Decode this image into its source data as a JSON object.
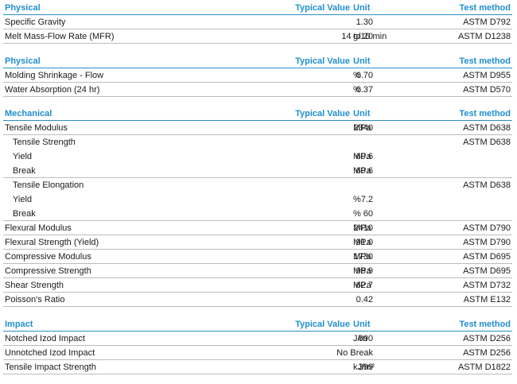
{
  "headers": {
    "typical_value": "Typical Value",
    "unit": "Unit",
    "test_method": "Test method"
  },
  "sections": [
    {
      "title": "Physical",
      "rows": [
        {
          "name": "Specific Gravity",
          "value": "1.30",
          "unit": "",
          "test": "ASTM D792"
        },
        {
          "name": "Melt Mass-Flow Rate (MFR)",
          "value": "14 to 20",
          "unit": "g/10 min",
          "test": "ASTM D1238"
        }
      ]
    },
    {
      "title": "Physical",
      "rows": [
        {
          "name": "Molding Shrinkage - Flow",
          "value": "0.70",
          "unit": "%",
          "test": "ASTM D955"
        },
        {
          "name": "Water Absorption (24 hr)",
          "value": "0.37",
          "unit": "%",
          "test": "ASTM D570"
        }
      ]
    },
    {
      "title": "Mechanical",
      "rows": [
        {
          "name": "Tensile Modulus",
          "value": "2340",
          "unit": "MPa",
          "test": "ASTM D638"
        },
        {
          "name": "Tensile Strength",
          "value": "",
          "unit": "",
          "test": "ASTM D638",
          "group": true
        },
        {
          "name": "Yield",
          "value": "69.6",
          "unit": "MPa",
          "test": "",
          "sub": true
        },
        {
          "name": "Break",
          "value": "69.6",
          "unit": "MPa",
          "test": ""
        },
        {
          "name": "Tensile Elongation",
          "value": "",
          "unit": "",
          "test": "ASTM D638",
          "group": true
        },
        {
          "name": "Yield",
          "value": "7.2",
          "unit": "%",
          "test": "",
          "sub": true
        },
        {
          "name": "Break",
          "value": "60",
          "unit": "%",
          "test": ""
        },
        {
          "name": "Flexural Modulus",
          "value": "2410",
          "unit": "MPa",
          "test": "ASTM D790"
        },
        {
          "name": "Flexural Strength (Yield)",
          "value": "91.0",
          "unit": "MPa",
          "test": "ASTM D790"
        },
        {
          "name": "Compressive Modulus",
          "value": "1730",
          "unit": "MPa",
          "test": "ASTM D695"
        },
        {
          "name": "Compressive Strength",
          "value": "98.9",
          "unit": "MPa",
          "test": "ASTM D695"
        },
        {
          "name": "Shear Strength",
          "value": "62.7",
          "unit": "MPa",
          "test": "ASTM D732"
        },
        {
          "name": "Poisson's Ratio",
          "value": "0.42",
          "unit": "",
          "test": "ASTM E132"
        }
      ]
    },
    {
      "title": "Impact",
      "rows": [
        {
          "name": "Notched Izod Impact",
          "value": "690",
          "unit": "J/m",
          "test": "ASTM D256"
        },
        {
          "name": "Unnotched Izod Impact",
          "value": "No Break",
          "unit": "",
          "test": "ASTM D256"
        },
        {
          "name": "Tensile Impact Strength",
          "value": "399",
          "unit": "kJ/m²",
          "test": "ASTM D1822"
        }
      ]
    }
  ],
  "colors": {
    "header_text": "#1f8fcf",
    "header_rule": "#2a8fc6",
    "row_rule": "#b9bcc0"
  }
}
